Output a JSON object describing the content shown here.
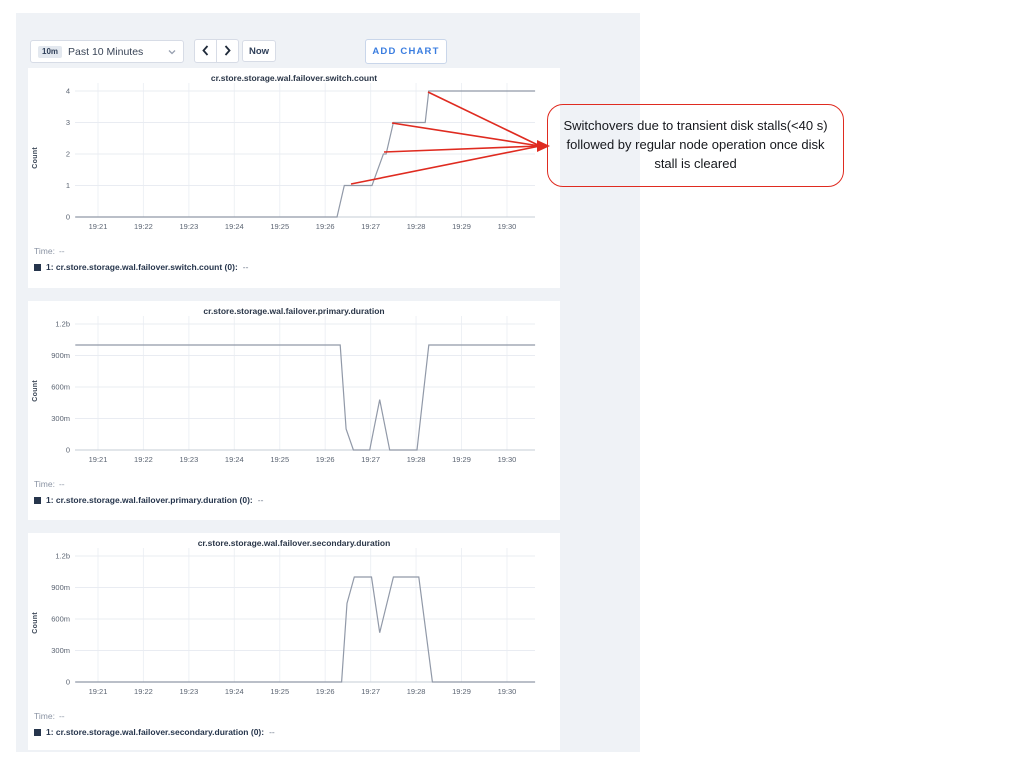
{
  "toolbar": {
    "time_range_badge": "10m",
    "time_range_label": "Past 10 Minutes",
    "now_label": "Now",
    "add_chart_label": "ADD CHART"
  },
  "annotation": {
    "text": "Switchovers due to transient disk stalls(<40 s) followed by regular node operation once disk stall is cleared",
    "color": "#df2b20",
    "arrow_sources": [
      [
        351,
        184
      ],
      [
        384,
        152
      ],
      [
        392,
        123
      ],
      [
        428,
        92
      ]
    ],
    "arrow_converge": [
      540,
      146
    ],
    "arrow_tip": [
      550,
      146
    ]
  },
  "chart_data": [
    {
      "type": "line",
      "title": "cr.store.storage.wal.failover.switch.count",
      "ylabel": "Count",
      "ytick_labels": [
        "4",
        "3",
        "2",
        "1",
        "0"
      ],
      "ytick_values": [
        4,
        3,
        2,
        1,
        0
      ],
      "ylim": [
        0,
        4
      ],
      "xticks": [
        "19:21",
        "19:22",
        "19:23",
        "19:24",
        "19:25",
        "19:26",
        "19:27",
        "19:28",
        "19:29",
        "19:30"
      ],
      "points": [
        [
          0.5,
          0
        ],
        [
          6.26,
          0
        ],
        [
          6.42,
          1
        ],
        [
          7.03,
          1
        ],
        [
          7.28,
          2
        ],
        [
          7.34,
          2
        ],
        [
          7.5,
          3
        ],
        [
          8.2,
          3
        ],
        [
          8.28,
          4
        ],
        [
          10.62,
          4
        ]
      ],
      "line_color": "#9199a8",
      "legend": {
        "time_label": "Time:",
        "time_value": "--",
        "series_label": "1: cr.store.storage.wal.failover.switch.count (0):",
        "series_value": "--"
      }
    },
    {
      "type": "line",
      "title": "cr.store.storage.wal.failover.primary.duration",
      "ylabel": "Count",
      "ytick_labels": [
        "1.2b",
        "900m",
        "600m",
        "300m",
        "0"
      ],
      "ytick_values": [
        1200,
        900,
        600,
        300,
        0
      ],
      "ylim": [
        0,
        1200
      ],
      "xticks": [
        "19:21",
        "19:22",
        "19:23",
        "19:24",
        "19:25",
        "19:26",
        "19:27",
        "19:28",
        "19:29",
        "19:30"
      ],
      "points": [
        [
          0.5,
          1000
        ],
        [
          6.33,
          1000
        ],
        [
          6.46,
          200
        ],
        [
          6.62,
          0
        ],
        [
          6.98,
          0
        ],
        [
          7.2,
          480
        ],
        [
          7.42,
          0
        ],
        [
          8.02,
          0
        ],
        [
          8.28,
          1000
        ],
        [
          10.62,
          1000
        ]
      ],
      "line_color": "#9199a8",
      "legend": {
        "time_label": "Time:",
        "time_value": "--",
        "series_label": "1: cr.store.storage.wal.failover.primary.duration (0):",
        "series_value": "--"
      }
    },
    {
      "type": "line",
      "title": "cr.store.storage.wal.failover.secondary.duration",
      "ylabel": "Count",
      "ytick_labels": [
        "1.2b",
        "900m",
        "600m",
        "300m",
        "0"
      ],
      "ytick_values": [
        1200,
        900,
        600,
        300,
        0
      ],
      "ylim": [
        0,
        1200
      ],
      "xticks": [
        "19:21",
        "19:22",
        "19:23",
        "19:24",
        "19:25",
        "19:26",
        "19:27",
        "19:28",
        "19:29",
        "19:30"
      ],
      "points": [
        [
          0.5,
          0
        ],
        [
          6.36,
          0
        ],
        [
          6.48,
          750
        ],
        [
          6.64,
          1000
        ],
        [
          7.02,
          1000
        ],
        [
          7.2,
          470
        ],
        [
          7.5,
          1000
        ],
        [
          8.06,
          1000
        ],
        [
          8.36,
          0
        ],
        [
          10.62,
          0
        ]
      ],
      "line_color": "#9199a8",
      "legend": {
        "time_label": "Time:",
        "time_value": "--",
        "series_label": "1: cr.store.storage.wal.failover.secondary.duration (0):",
        "series_value": "--"
      }
    }
  ]
}
